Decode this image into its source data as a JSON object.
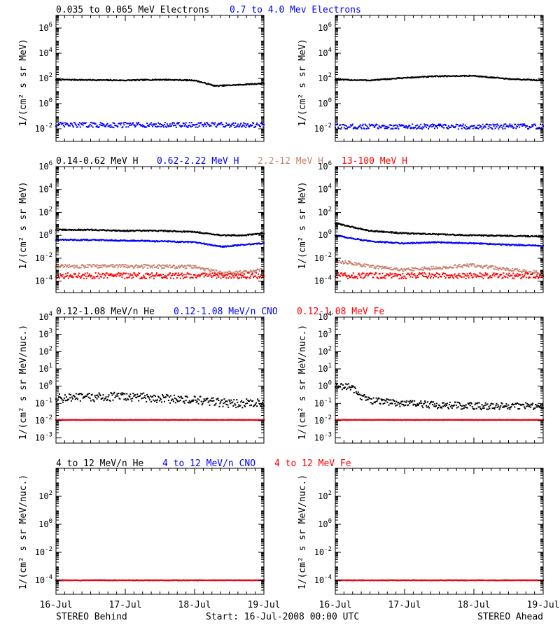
{
  "time_axis": {
    "tick_labels": [
      "16-Jul",
      "17-Jul",
      "18-Jul",
      "19-Jul"
    ],
    "tick_days": [
      0,
      1,
      2,
      3
    ],
    "range_days": [
      0,
      3
    ]
  },
  "footer": {
    "left": "STEREO Behind",
    "center": "Start: 16-Jul-2008 00:00 UTC",
    "right": "STEREO Ahead"
  },
  "ylabels": {
    "flux": "1/(cm² s sr MeV)",
    "nuc": "1/(cm² s sr MeV/nuc.)"
  },
  "colors": {
    "black": "#000000",
    "blue": "#0000ff",
    "tan": "#c8826e",
    "red": "#ff0000"
  },
  "rows": [
    {
      "legend": [
        {
          "text": "0.035 to 0.065 MeV Electrons",
          "color": "black"
        },
        {
          "text": "0.7 to 4.0 Mev Electrons",
          "color": "blue"
        }
      ],
      "ylabel": "flux",
      "log_range": [
        -3,
        7
      ],
      "ticks": [
        -2,
        0,
        2,
        4,
        6
      ]
    },
    {
      "legend": [
        {
          "text": "0.14-0.62 MeV H",
          "color": "black"
        },
        {
          "text": "0.62-2.22 MeV H",
          "color": "blue"
        },
        {
          "text": "2.2-12 MeV H",
          "color": "tan"
        },
        {
          "text": "13-100 MeV H",
          "color": "red"
        }
      ],
      "ylabel": "flux",
      "log_range": [
        -5,
        6
      ],
      "ticks": [
        -4,
        -2,
        0,
        2,
        4,
        6
      ]
    },
    {
      "legend": [
        {
          "text": "0.12-1.08 MeV/n He",
          "color": "black"
        },
        {
          "text": "0.12-1.08 MeV/n CNO",
          "color": "blue"
        },
        {
          "text": "0.12-1.08 MeV Fe",
          "color": "red"
        }
      ],
      "ylabel": "nuc",
      "log_range": [
        -3.3,
        4
      ],
      "ticks": [
        -3,
        -2,
        -1,
        0,
        1,
        2,
        3,
        4
      ]
    },
    {
      "legend": [
        {
          "text": "4 to 12 MeV/n He",
          "color": "black"
        },
        {
          "text": "4 to 12 MeV/n CNO",
          "color": "blue"
        },
        {
          "text": "4 to 12 MeV Fe",
          "color": "red"
        }
      ],
      "ylabel": "nuc",
      "log_range": [
        -5,
        4
      ],
      "ticks": [
        -4,
        -2,
        0,
        2
      ]
    }
  ],
  "chart_data": [
    {
      "type": "scatter",
      "spacecraft": "STEREO Behind",
      "row": 0,
      "yscale": "log",
      "series": [
        {
          "name": "0.035 to 0.065 MeV Electrons",
          "color": "black",
          "x": [
            0,
            0.5,
            1.0,
            1.5,
            2.0,
            2.3,
            2.6,
            3.0
          ],
          "y": [
            80,
            75,
            70,
            80,
            70,
            25,
            30,
            40
          ],
          "scatter": 0.04
        },
        {
          "name": "0.7 to 4.0 Mev Electrons",
          "color": "blue",
          "x": [
            0,
            1.5,
            3.0
          ],
          "y": [
            0.02,
            0.02,
            0.02
          ],
          "scatter": 0.2
        }
      ]
    },
    {
      "type": "scatter",
      "spacecraft": "STEREO Ahead",
      "row": 0,
      "yscale": "log",
      "series": [
        {
          "name": "0.035 to 0.065 MeV Electrons",
          "color": "black",
          "x": [
            0,
            0.5,
            1.0,
            1.5,
            2.0,
            2.5,
            3.0
          ],
          "y": [
            80,
            70,
            110,
            150,
            160,
            90,
            70
          ],
          "scatter": 0.04
        },
        {
          "name": "0.7 to 4.0 Mev Electrons",
          "color": "blue",
          "x": [
            0,
            1.5,
            3.0
          ],
          "y": [
            0.015,
            0.015,
            0.015
          ],
          "scatter": 0.2
        }
      ]
    },
    {
      "type": "scatter",
      "spacecraft": "STEREO Behind",
      "row": 1,
      "yscale": "log",
      "series": [
        {
          "name": "0.14-0.62 MeV H",
          "color": "black",
          "x": [
            0,
            0.5,
            1.0,
            1.5,
            2.0,
            2.4,
            2.7,
            3.0
          ],
          "y": [
            3,
            3,
            2.5,
            2.5,
            2,
            1,
            1,
            1.5
          ],
          "scatter": 0.05
        },
        {
          "name": "0.62-2.22 MeV H",
          "color": "blue",
          "x": [
            0,
            0.5,
            1.0,
            1.5,
            2.0,
            2.4,
            2.7,
            3.0
          ],
          "y": [
            0.4,
            0.4,
            0.35,
            0.3,
            0.25,
            0.1,
            0.15,
            0.2
          ],
          "scatter": 0.05
        },
        {
          "name": "2.2-12 MeV H",
          "color": "tan",
          "x": [
            0,
            1.0,
            2.0,
            2.4,
            2.7,
            3.0
          ],
          "y": [
            0.002,
            0.002,
            0.0018,
            0.0005,
            0.0006,
            0.001
          ],
          "scatter": 0.15
        },
        {
          "name": "13-100 MeV H",
          "color": "red",
          "x": [
            0,
            1.5,
            3.0
          ],
          "y": [
            0.0003,
            0.0003,
            0.0003
          ],
          "scatter": 0.25
        }
      ]
    },
    {
      "type": "scatter",
      "spacecraft": "STEREO Ahead",
      "row": 1,
      "yscale": "log",
      "series": [
        {
          "name": "0.14-0.62 MeV H",
          "color": "black",
          "x": [
            0,
            0.2,
            0.5,
            1.0,
            1.5,
            2.0,
            2.5,
            3.0
          ],
          "y": [
            12,
            6,
            2.5,
            1.5,
            1.2,
            1,
            0.9,
            0.8
          ],
          "scatter": 0.05
        },
        {
          "name": "0.62-2.22 MeV H",
          "color": "blue",
          "x": [
            0,
            0.2,
            0.5,
            1.0,
            1.5,
            2.0,
            2.5,
            3.0
          ],
          "y": [
            1,
            0.6,
            0.3,
            0.2,
            0.25,
            0.2,
            0.15,
            0.12
          ],
          "scatter": 0.05
        },
        {
          "name": "2.2-12 MeV H",
          "color": "tan",
          "x": [
            0,
            0.2,
            0.5,
            1.0,
            1.5,
            2.0,
            2.5,
            3.0
          ],
          "y": [
            0.005,
            0.004,
            0.002,
            0.001,
            0.0015,
            0.0025,
            0.001,
            0.0005
          ],
          "scatter": 0.15
        },
        {
          "name": "13-100 MeV H",
          "color": "red",
          "x": [
            0,
            1.5,
            3.0
          ],
          "y": [
            0.0003,
            0.0003,
            0.0003
          ],
          "scatter": 0.25
        }
      ]
    },
    {
      "type": "scatter",
      "spacecraft": "STEREO Behind",
      "row": 2,
      "yscale": "log",
      "series": [
        {
          "name": "0.12-1.08 MeV/n He",
          "color": "black",
          "x": [
            0,
            1.0,
            1.5,
            2.0,
            2.5,
            3.0
          ],
          "y": [
            0.2,
            0.25,
            0.2,
            0.15,
            0.1,
            0.1
          ],
          "scatter": 0.25
        },
        {
          "name": "0.12-1.08 MeV/n CNO",
          "color": "blue",
          "x": [
            0,
            3.0
          ],
          "y": [
            0.011,
            0.011
          ],
          "scatter": 0.01
        },
        {
          "name": "0.12-1.08 MeV Fe",
          "color": "red",
          "x": [
            0,
            3.0
          ],
          "y": [
            0.011,
            0.011
          ],
          "scatter": 0.01
        }
      ]
    },
    {
      "type": "scatter",
      "spacecraft": "STEREO Ahead",
      "row": 2,
      "yscale": "log",
      "series": [
        {
          "name": "0.12-1.08 MeV/n He",
          "color": "black",
          "x": [
            0,
            0.15,
            0.25,
            0.35,
            0.5,
            1.0,
            1.5,
            2.0,
            3.0
          ],
          "y": [
            1,
            1,
            0.8,
            0.3,
            0.15,
            0.1,
            0.08,
            0.07,
            0.07
          ],
          "scatter": 0.2
        },
        {
          "name": "0.12-1.08 MeV/n CNO",
          "color": "blue",
          "x": [
            0,
            3.0
          ],
          "y": [
            0.011,
            0.011
          ],
          "scatter": 0.01
        },
        {
          "name": "0.12-1.08 MeV Fe",
          "color": "red",
          "x": [
            0,
            3.0
          ],
          "y": [
            0.011,
            0.011
          ],
          "scatter": 0.01
        }
      ]
    },
    {
      "type": "scatter",
      "spacecraft": "STEREO Behind",
      "row": 3,
      "yscale": "log",
      "series": [
        {
          "name": "4 to 12 MeV/n He",
          "color": "black",
          "x": [
            0,
            3.0
          ],
          "y": [
            0.0001,
            0.0001
          ],
          "scatter": 0.01
        },
        {
          "name": "4 to 12 MeV/n CNO",
          "color": "blue",
          "x": [
            0,
            3.0
          ],
          "y": [
            0.0001,
            0.0001
          ],
          "scatter": 0.01
        },
        {
          "name": "4 to 12 MeV Fe",
          "color": "red",
          "x": [
            0,
            3.0
          ],
          "y": [
            0.0001,
            0.0001
          ],
          "scatter": 0.01
        }
      ]
    },
    {
      "type": "scatter",
      "spacecraft": "STEREO Ahead",
      "row": 3,
      "yscale": "log",
      "series": [
        {
          "name": "4 to 12 MeV/n He",
          "color": "black",
          "x": [
            0,
            3.0
          ],
          "y": [
            0.0001,
            0.0001
          ],
          "scatter": 0.01
        },
        {
          "name": "4 to 12 MeV/n CNO",
          "color": "blue",
          "x": [
            0,
            3.0
          ],
          "y": [
            0.0001,
            0.0001
          ],
          "scatter": 0.01
        },
        {
          "name": "4 to 12 MeV Fe",
          "color": "red",
          "x": [
            0,
            3.0
          ],
          "y": [
            0.0001,
            0.0001
          ],
          "scatter": 0.01
        }
      ]
    }
  ]
}
